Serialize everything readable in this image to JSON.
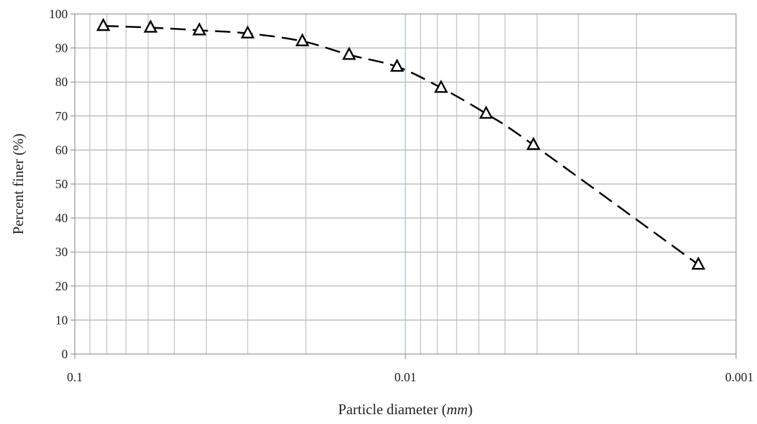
{
  "chart_data": {
    "type": "scatter",
    "title": "",
    "xlabel": "Particle diameter",
    "xlabel_unit": "mm",
    "ylabel": "Percent finer (%)",
    "x_scale": "log",
    "x_reversed": true,
    "xlim": [
      0.1,
      0.001
    ],
    "ylim": [
      0,
      100
    ],
    "x_ticks": [
      "0.1",
      "0.01",
      "0.001"
    ],
    "y_ticks": [
      "0",
      "10",
      "20",
      "30",
      "40",
      "50",
      "60",
      "70",
      "80",
      "90",
      "100"
    ],
    "grid": true,
    "legend": "none",
    "series": [
      {
        "marker": "open-triangle",
        "line_style": "dashed",
        "color": "#000000",
        "x": [
          0.082,
          0.059,
          0.042,
          0.03,
          0.0205,
          0.0148,
          0.0106,
          0.0078,
          0.0057,
          0.0041,
          0.0013
        ],
        "y": [
          96.5,
          96.0,
          95.2,
          94.3,
          92.0,
          88.0,
          84.5,
          78.3,
          70.7,
          61.5,
          26.3
        ]
      }
    ]
  }
}
